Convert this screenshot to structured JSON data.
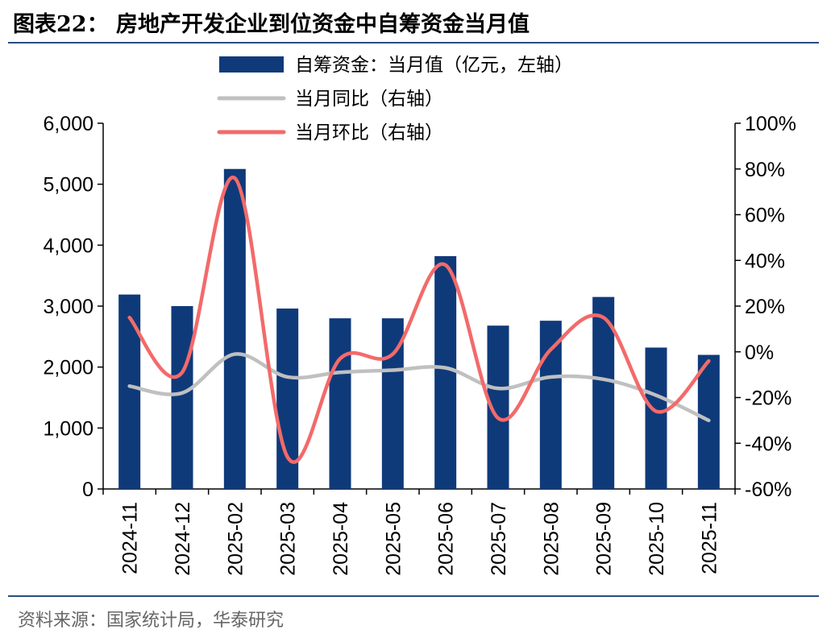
{
  "header": {
    "title": "图表22： 房地产开发企业到位资金中自筹资金当月值",
    "source": "资料来源：国家统计局，华泰研究"
  },
  "chart_data": {
    "type": "bar+line",
    "categories": [
      "2024-11",
      "2024-12",
      "2025-02",
      "2025-03",
      "2025-04",
      "2025-05",
      "2025-06",
      "2025-07",
      "2025-08",
      "2025-09",
      "2025-10",
      "2025-11"
    ],
    "series": [
      {
        "name": "自筹资金：当月值（亿元，左轴）",
        "type": "bar",
        "axis": "left",
        "color": "#0f3a7a",
        "values": [
          3190,
          3000,
          5250,
          2960,
          2800,
          2800,
          3820,
          2680,
          2760,
          3150,
          2320,
          2200
        ]
      },
      {
        "name": "当月同比（右轴）",
        "type": "line",
        "axis": "right",
        "color": "#c0c0c0",
        "values": [
          -15,
          -18,
          -1,
          -11,
          -9,
          -8,
          -7,
          -16,
          -11,
          -12,
          -19,
          -30
        ]
      },
      {
        "name": "当月环比（右轴）",
        "type": "line",
        "axis": "right",
        "color": "#f36a6a",
        "values": [
          15,
          -9,
          76,
          -46,
          -3,
          -1,
          38,
          -29,
          1,
          15,
          -26,
          -4
        ]
      }
    ],
    "left_axis": {
      "ylim": [
        0,
        6000
      ],
      "ticks": [
        "0",
        "1,000",
        "2,000",
        "3,000",
        "4,000",
        "5,000",
        "6,000"
      ]
    },
    "right_axis": {
      "ylim": [
        -60,
        100
      ],
      "ticks": [
        "-60%",
        "-40%",
        "-20%",
        "0%",
        "20%",
        "40%",
        "60%",
        "80%",
        "100%"
      ]
    },
    "legend_position": "top",
    "grid": false
  }
}
